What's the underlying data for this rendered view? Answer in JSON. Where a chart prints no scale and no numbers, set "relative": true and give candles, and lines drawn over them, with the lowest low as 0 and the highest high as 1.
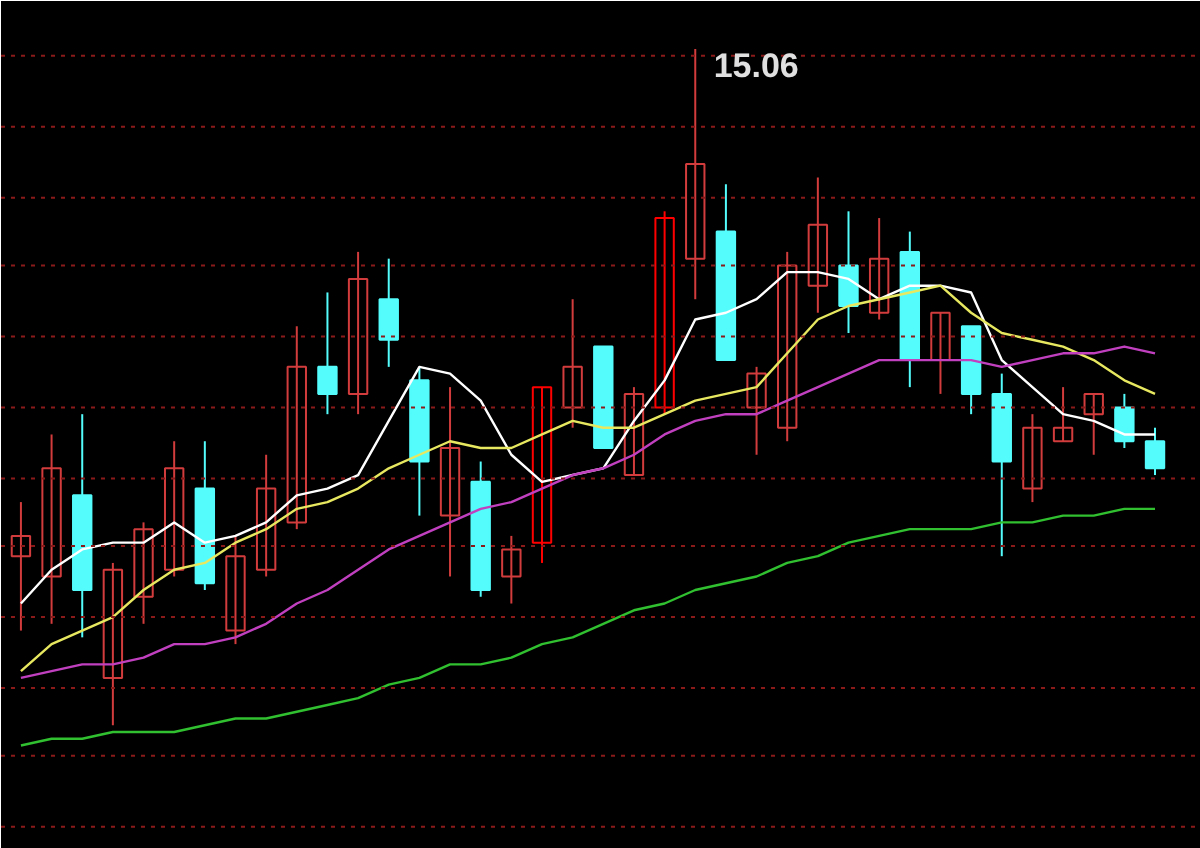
{
  "chart_data": {
    "type": "candlestick",
    "relative": true,
    "tick_labels": false,
    "categories": [
      null,
      null,
      null,
      null,
      null,
      null,
      null,
      null,
      null,
      null,
      null,
      null,
      null,
      null,
      null,
      null,
      null,
      null,
      null,
      null,
      null,
      null,
      null,
      null,
      null,
      null,
      null,
      null,
      null,
      null,
      null,
      null,
      null,
      null,
      null,
      null,
      null,
      null
    ],
    "ohlc": [
      [
        0.25,
        0.33,
        0.14,
        0.28
      ],
      [
        0.22,
        0.43,
        0.15,
        0.38
      ],
      [
        0.34,
        0.46,
        0.13,
        0.2
      ],
      [
        0.07,
        0.24,
        0,
        0.23
      ],
      [
        0.19,
        0.3,
        0.15,
        0.29
      ],
      [
        0.23,
        0.42,
        0.22,
        0.38
      ],
      [
        0.35,
        0.42,
        0.2,
        0.21
      ],
      [
        0.14,
        0.28,
        0.12,
        0.25
      ],
      [
        0.23,
        0.4,
        0.22,
        0.35
      ],
      [
        0.3,
        0.59,
        0.29,
        0.53
      ],
      [
        0.53,
        0.64,
        0.46,
        0.49
      ],
      [
        0.49,
        0.7,
        0.46,
        0.66
      ],
      [
        0.63,
        0.69,
        0.53,
        0.57
      ],
      [
        0.51,
        0.53,
        0.31,
        0.39
      ],
      [
        0.31,
        0.5,
        0.22,
        0.41
      ],
      [
        0.36,
        0.39,
        0.19,
        0.2
      ],
      [
        0.22,
        0.28,
        0.18,
        0.26
      ],
      [
        0.27,
        0.5,
        0.24,
        0.5
      ],
      [
        0.47,
        0.63,
        0.44,
        0.53
      ],
      [
        0.56,
        0.56,
        0.41,
        0.41
      ],
      [
        0.37,
        0.5,
        0.37,
        0.49
      ],
      [
        0.47,
        0.76,
        0.46,
        0.75
      ],
      [
        0.69,
        1,
        0.63,
        0.83
      ],
      [
        0.73,
        0.8,
        0.54,
        0.54
      ],
      [
        0.47,
        0.53,
        0.4,
        0.52
      ],
      [
        0.44,
        0.7,
        0.42,
        0.68
      ],
      [
        0.65,
        0.81,
        0.61,
        0.74
      ],
      [
        0.68,
        0.76,
        0.58,
        0.62
      ],
      [
        0.61,
        0.75,
        0.6,
        0.69
      ],
      [
        0.7,
        0.73,
        0.5,
        0.54
      ],
      [
        0.54,
        0.61,
        0.49,
        0.61
      ],
      [
        0.59,
        0.59,
        0.46,
        0.49
      ],
      [
        0.49,
        0.52,
        0.25,
        0.39
      ],
      [
        0.35,
        0.46,
        0.33,
        0.44
      ],
      [
        0.42,
        0.5,
        0.42,
        0.44
      ],
      [
        0.46,
        0.49,
        0.4,
        0.49
      ],
      [
        0.47,
        0.49,
        0.41,
        0.42
      ],
      [
        0.42,
        0.44,
        0.37,
        0.38
      ]
    ],
    "colors": [
      "#d23c3c",
      "#d23c3c",
      "#54fcfc",
      "#d23c3c",
      "#d23c3c",
      "#d23c3c",
      "#54fcfc",
      "#d23c3c",
      "#d23c3c",
      "#d23c3c",
      "#54fcfc",
      "#d23c3c",
      "#54fcfc",
      "#54fcfc",
      "#d23c3c",
      "#54fcfc",
      "#d23c3c",
      "#ff0000",
      "#d23c3c",
      "#54fcfc",
      "#d23c3c",
      "#ff0000",
      "#d23c3c",
      "#54fcfc",
      "#d23c3c",
      "#d23c3c",
      "#d23c3c",
      "#54fcfc",
      "#d23c3c",
      "#54fcfc",
      "#d23c3c",
      "#54fcfc",
      "#54fcfc",
      "#d23c3c",
      "#d23c3c",
      "#d23c3c",
      "#54fcfc",
      "#54fcfc"
    ],
    "series": [
      {
        "type": "line",
        "color": "#ffffff",
        "values": [
          0.18,
          0.23,
          0.26,
          0.27,
          0.27,
          0.3,
          0.27,
          0.28,
          0.3,
          0.34,
          0.35,
          0.37,
          0.45,
          0.53,
          0.52,
          0.48,
          0.4,
          0.36,
          0.37,
          0.38,
          0.45,
          0.51,
          0.6,
          0.61,
          0.63,
          0.67,
          0.67,
          0.66,
          0.63,
          0.65,
          0.65,
          0.64,
          0.54,
          0.5,
          0.46,
          0.45,
          0.43,
          0.43
        ]
      },
      {
        "type": "line",
        "color": "#e8e860",
        "values": [
          0.08,
          0.12,
          0.14,
          0.16,
          0.2,
          0.23,
          0.24,
          0.27,
          0.29,
          0.32,
          0.33,
          0.35,
          0.38,
          0.4,
          0.42,
          0.41,
          0.41,
          0.43,
          0.45,
          0.44,
          0.44,
          0.46,
          0.48,
          0.49,
          0.5,
          0.55,
          0.6,
          0.62,
          0.63,
          0.64,
          0.65,
          0.61,
          0.58,
          0.57,
          0.56,
          0.54,
          0.51,
          0.49
        ]
      },
      {
        "type": "line",
        "color": "#c040c0",
        "values": [
          0.07,
          0.08,
          0.09,
          0.09,
          0.1,
          0.12,
          0.12,
          0.13,
          0.15,
          0.18,
          0.2,
          0.23,
          0.26,
          0.28,
          0.3,
          0.32,
          0.33,
          0.35,
          0.37,
          0.38,
          0.4,
          0.43,
          0.45,
          0.46,
          0.46,
          0.48,
          0.5,
          0.52,
          0.54,
          0.54,
          0.54,
          0.54,
          0.53,
          0.54,
          0.55,
          0.55,
          0.56,
          0.55
        ]
      },
      {
        "type": "line",
        "color": "#30c030",
        "values": [
          -0.03,
          -0.02,
          -0.02,
          -0.01,
          -0.01,
          -0.01,
          0,
          0.01,
          0.01,
          0.02,
          0.03,
          0.04,
          0.06,
          0.07,
          0.09,
          0.09,
          0.1,
          0.12,
          0.13,
          0.15,
          0.17,
          0.18,
          0.2,
          0.21,
          0.22,
          0.24,
          0.25,
          0.27,
          0.28,
          0.29,
          0.29,
          0.29,
          0.3,
          0.3,
          0.31,
          0.31,
          0.32,
          0.32
        ]
      }
    ],
    "ref_lines": [
      {
        "axis": "y",
        "value": 0.99,
        "color": "#8a1a1a",
        "line_style": "dashed"
      },
      {
        "axis": "y",
        "value": 0.885,
        "color": "#8a1a1a",
        "line_style": "dashed"
      },
      {
        "axis": "y",
        "value": 0.78,
        "color": "#8a1a1a",
        "line_style": "dashed"
      },
      {
        "axis": "y",
        "value": 0.68,
        "color": "#8a1a1a",
        "line_style": "dashed"
      },
      {
        "axis": "y",
        "value": 0.575,
        "color": "#8a1a1a",
        "line_style": "dashed"
      },
      {
        "axis": "y",
        "value": 0.47,
        "color": "#8a1a1a",
        "line_style": "dashed"
      },
      {
        "axis": "y",
        "value": 0.365,
        "color": "#8a1a1a",
        "line_style": "dashed"
      },
      {
        "axis": "y",
        "value": 0.265,
        "color": "#8a1a1a",
        "line_style": "dashed"
      },
      {
        "axis": "y",
        "value": 0.16,
        "color": "#8a1a1a",
        "line_style": "dashed"
      },
      {
        "axis": "y",
        "value": 0.055,
        "color": "#8a1a1a",
        "line_style": "dashed"
      },
      {
        "axis": "y",
        "value": -0.045,
        "color": "#8a1a1a",
        "line_style": "dashed"
      },
      {
        "axis": "y",
        "value": -0.15,
        "color": "#8a1a1a",
        "line_style": "dashed"
      }
    ],
    "annotations": [
      "15.06"
    ]
  }
}
